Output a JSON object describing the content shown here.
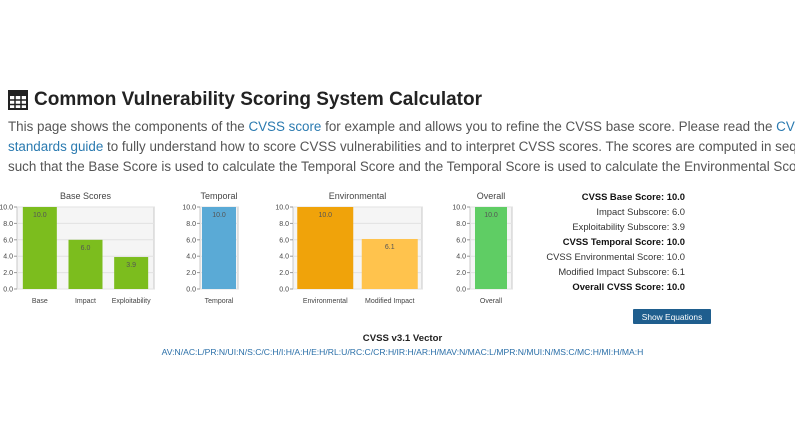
{
  "header": {
    "title": "Common Vulnerability Scoring System Calculator",
    "icon": "calculator-icon"
  },
  "intro": {
    "text1": "This page shows the components of the ",
    "link1": "CVSS score",
    "text2": " for example and allows you to refine the CVSS base score. Please read the ",
    "link2_line1": "CVSS",
    "link2_line2": "standards guide",
    "text3": " to fully understand how to score CVSS vulnerabilities and to interpret CVSS scores. The scores are computed in sequence",
    "text4": "such that the Base Score is used to calculate the Temporal Score and the Temporal Score is used to calculate the Environmental Score."
  },
  "chart_data": [
    {
      "type": "bar",
      "title": "Base Scores",
      "categories": [
        "Base",
        "Impact",
        "Exploitability"
      ],
      "values": [
        10.0,
        6.0,
        3.9
      ],
      "colors": [
        "#7cbd1e",
        "#7cbd1e",
        "#7cbd1e"
      ],
      "ylim": [
        0,
        10
      ],
      "yticks": [
        "0.0",
        "2.0",
        "4.0",
        "6.0",
        "8.0",
        "10.0"
      ]
    },
    {
      "type": "bar",
      "title": "Temporal",
      "categories": [
        "Temporal"
      ],
      "values": [
        10.0
      ],
      "colors": [
        "#5aaad6"
      ],
      "ylim": [
        0,
        10
      ],
      "yticks": [
        "0.0",
        "2.0",
        "4.0",
        "6.0",
        "8.0",
        "10.0"
      ]
    },
    {
      "type": "bar",
      "title": "Environmental",
      "categories": [
        "Environmental",
        "Modified Impact"
      ],
      "values": [
        10.0,
        6.1
      ],
      "colors": [
        "#f0a30a",
        "#ffc34d"
      ],
      "ylim": [
        0,
        10
      ],
      "yticks": [
        "0.0",
        "2.0",
        "4.0",
        "6.0",
        "8.0",
        "10.0"
      ]
    },
    {
      "type": "bar",
      "title": "Overall",
      "categories": [
        "Overall"
      ],
      "values": [
        10.0
      ],
      "colors": [
        "#5fcd64"
      ],
      "ylim": [
        0,
        10
      ],
      "yticks": [
        "0.0",
        "2.0",
        "4.0",
        "6.0",
        "8.0",
        "10.0"
      ]
    }
  ],
  "scores": [
    {
      "label": "CVSS Base Score:",
      "value": "10.0",
      "bold": true
    },
    {
      "label": "Impact Subscore:",
      "value": "6.0",
      "bold": false
    },
    {
      "label": "Exploitability Subscore:",
      "value": "3.9",
      "bold": false
    },
    {
      "label": "CVSS Temporal Score:",
      "value": "10.0",
      "bold": true
    },
    {
      "label": "CVSS Environmental Score:",
      "value": "10.0",
      "bold": false
    },
    {
      "label": "Modified Impact Subscore:",
      "value": "6.1",
      "bold": false
    },
    {
      "label": "Overall CVSS Score:",
      "value": "10.0",
      "bold": true
    }
  ],
  "show_equations_label": "Show Equations",
  "vector": {
    "title": "CVSS v3.1 Vector",
    "value": "AV:N/AC:L/PR:N/UI:N/S:C/C:H/I:H/A:H/E:H/RL:U/RC:C/CR:H/IR:H/AR:H/MAV:N/MAC:L/MPR:N/MUI:N/MS:C/MC:H/MI:H/MA:H"
  }
}
